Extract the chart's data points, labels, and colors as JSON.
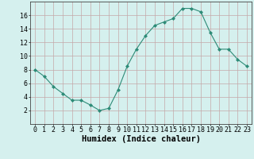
{
  "x": [
    0,
    1,
    2,
    3,
    4,
    5,
    6,
    7,
    8,
    9,
    10,
    11,
    12,
    13,
    14,
    15,
    16,
    17,
    18,
    19,
    20,
    21,
    22,
    23
  ],
  "y": [
    8,
    7,
    5.5,
    4.5,
    3.5,
    3.5,
    2.8,
    2,
    2.3,
    5,
    8.5,
    11,
    13,
    14.5,
    15,
    15.5,
    17,
    17,
    16.5,
    13.5,
    11,
    11,
    9.5,
    8.5
  ],
  "line_color": "#2d8b77",
  "marker": "D",
  "marker_size": 2.0,
  "bg_color": "#d5f0ee",
  "grid_color": "#c4a8a8",
  "xlabel": "Humidex (Indice chaleur)",
  "xlabel_fontsize": 7.5,
  "tick_fontsize": 6.0,
  "xlim": [
    -0.5,
    23.5
  ],
  "ylim": [
    0,
    18
  ],
  "yticks": [
    2,
    4,
    6,
    8,
    10,
    12,
    14,
    16
  ],
  "xticks": [
    0,
    1,
    2,
    3,
    4,
    5,
    6,
    7,
    8,
    9,
    10,
    11,
    12,
    13,
    14,
    15,
    16,
    17,
    18,
    19,
    20,
    21,
    22,
    23
  ]
}
